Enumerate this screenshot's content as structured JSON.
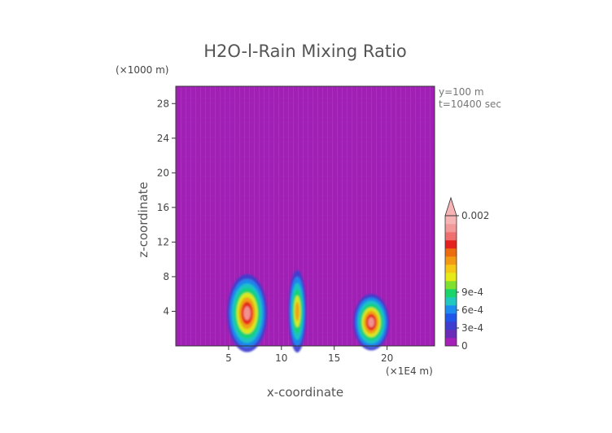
{
  "chart_data": {
    "type": "heatmap",
    "title": "H2O-l-Rain Mixing Ratio",
    "xlabel": "x-coordinate",
    "ylabel": "z-coordinate",
    "x_unit": "(×1E4 m)",
    "y_unit": "(×1000 m)",
    "xlim": [
      0,
      24.5
    ],
    "ylim": [
      0,
      30
    ],
    "x_ticks": [
      5,
      10,
      15,
      20
    ],
    "y_ticks": [
      4,
      8,
      12,
      16,
      20,
      24,
      28
    ],
    "annotations": [
      "y=100 m",
      "t=10400 sec"
    ],
    "colorbar": {
      "tick_labels": [
        {
          "value": 0,
          "label": "0"
        },
        {
          "value": 0.0003,
          "label": "3e-4"
        },
        {
          "value": 0.0006,
          "label": "6e-4"
        },
        {
          "value": 0.0009,
          "label": "9e-4"
        },
        {
          "value": 0.002,
          "label": "0.002"
        }
      ],
      "colors": [
        "#a61fb8",
        "#6a2bb8",
        "#3d3ecf",
        "#2055ea",
        "#1c8cf0",
        "#20c8c0",
        "#19d56a",
        "#7fe030",
        "#e8ea18",
        "#f5c818",
        "#f39a14",
        "#ec6c10",
        "#e42020",
        "#f07070",
        "#f29a9a",
        "#f6b4b4"
      ],
      "background": "#a61fb8"
    },
    "features": [
      {
        "x_range": [
          4.5,
          9
        ],
        "z_top": 9,
        "peak": "high"
      },
      {
        "x_range": [
          10.5,
          12.5
        ],
        "z_top": 9.5,
        "peak": "medium"
      },
      {
        "x_range": [
          16.5,
          20.5
        ],
        "z_top": 6.5,
        "peak": "high"
      }
    ]
  }
}
